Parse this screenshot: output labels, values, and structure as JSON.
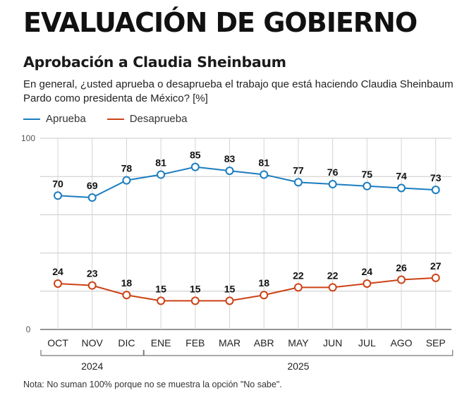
{
  "header": {
    "title": "EVALUACIÓN DE GOBIERNO",
    "subtitle": "Aprobación a Claudia Sheinbaum",
    "question": "En general, ¿usted aprueba o desaprueba el trabajo que está haciendo Claudia Sheinbaum Pardo como presidenta de México?  [%]"
  },
  "note": "Nota: No suman 100% porque no se muestra la opción \"No sabe\".",
  "colors": {
    "aprueba": "#1b7dc0",
    "desaprueba": "#cc4216"
  },
  "chart_data": {
    "type": "line",
    "title": "Aprobación a Claudia Sheinbaum",
    "categories": [
      "OCT",
      "NOV",
      "DIC",
      "ENE",
      "FEB",
      "MAR",
      "ABR",
      "MAY",
      "JUN",
      "JUL",
      "AGO",
      "SEP"
    ],
    "years": [
      {
        "label": "2024",
        "from": 0,
        "to": 2
      },
      {
        "label": "2025",
        "from": 3,
        "to": 11
      }
    ],
    "series": [
      {
        "name": "Aprueba",
        "color": "#1b7dc0",
        "values": [
          70,
          69,
          78,
          81,
          85,
          83,
          81,
          77,
          76,
          75,
          74,
          73
        ]
      },
      {
        "name": "Desaprueba",
        "color": "#cc4216",
        "values": [
          24,
          23,
          18,
          15,
          15,
          15,
          18,
          22,
          22,
          24,
          26,
          27
        ]
      }
    ],
    "ylim": [
      0,
      100
    ],
    "yticks": [
      "0",
      "100"
    ],
    "legend": "top-left",
    "xlabel": "",
    "ylabel": "%"
  }
}
